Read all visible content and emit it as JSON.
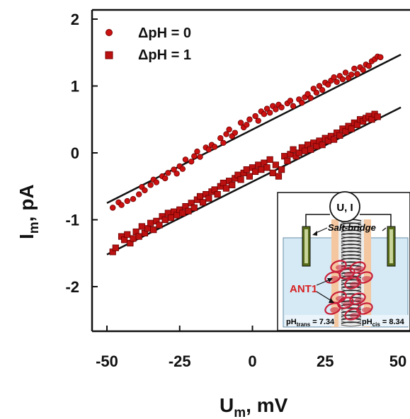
{
  "chart_data": {
    "type": "scatter",
    "xlabel_main": "U",
    "xlabel_sub": "m",
    "xlabel_unit": ", mV",
    "ylabel_main": "I",
    "ylabel_sub": "m",
    "ylabel_unit": ", pA",
    "xlim": [
      -55,
      51
    ],
    "ylim": [
      -2.75,
      2.1
    ],
    "x_ticks": [
      -50,
      -25,
      0,
      25,
      50
    ],
    "y_ticks": [
      2,
      1,
      0,
      -1,
      -2
    ],
    "x_tick_labels": [
      "-50",
      "-25",
      "0",
      "25",
      "50"
    ],
    "y_tick_labels": [
      "2",
      "1",
      "0",
      "-1",
      "-2"
    ],
    "legend_position": "top-left",
    "series": [
      {
        "name": "ΔpH = 0",
        "marker": "circle",
        "color": "#cc1111",
        "fit_line": {
          "x": [
            -50,
            51
          ],
          "y": [
            -0.75,
            1.47
          ]
        },
        "points": [
          [
            -48,
            -0.82
          ],
          [
            -46,
            -0.74
          ],
          [
            -45,
            -0.78
          ],
          [
            -43,
            -0.72
          ],
          [
            -41,
            -0.69
          ],
          [
            -39,
            -0.62
          ],
          [
            -38,
            -0.51
          ],
          [
            -37,
            -0.56
          ],
          [
            -35,
            -0.48
          ],
          [
            -34,
            -0.4
          ],
          [
            -33,
            -0.44
          ],
          [
            -31,
            -0.35
          ],
          [
            -30,
            -0.38
          ],
          [
            -29,
            -0.3
          ],
          [
            -27,
            -0.25
          ],
          [
            -26,
            -0.31
          ],
          [
            -25,
            -0.2
          ],
          [
            -24,
            -0.24
          ],
          [
            -23,
            -0.1
          ],
          [
            -21,
            -0.13
          ],
          [
            -20,
            -0.05
          ],
          [
            -19,
            0.02
          ],
          [
            -18,
            -0.06
          ],
          [
            -16,
            0.08
          ],
          [
            -15,
            0.05
          ],
          [
            -14,
            0.12
          ],
          [
            -13,
            0.09
          ],
          [
            -11,
            0.22
          ],
          [
            -10,
            0.15
          ],
          [
            -9,
            0.28
          ],
          [
            -8,
            0.35
          ],
          [
            -7,
            0.25
          ],
          [
            -6,
            0.3
          ],
          [
            -4,
            0.45
          ],
          [
            -3,
            0.38
          ],
          [
            -2,
            0.42
          ],
          [
            -1,
            0.5
          ],
          [
            1,
            0.55
          ],
          [
            2,
            0.48
          ],
          [
            3,
            0.62
          ],
          [
            4,
            0.58
          ],
          [
            5,
            0.66
          ],
          [
            6,
            0.6
          ],
          [
            7,
            0.7
          ],
          [
            8,
            0.65
          ],
          [
            9,
            0.72
          ],
          [
            10,
            0.68
          ],
          [
            12,
            0.74
          ],
          [
            13,
            0.78
          ],
          [
            14,
            0.7
          ],
          [
            16,
            0.8
          ],
          [
            17,
            0.75
          ],
          [
            18,
            0.83
          ],
          [
            19,
            0.88
          ],
          [
            20,
            0.82
          ],
          [
            21,
            0.96
          ],
          [
            22,
            0.9
          ],
          [
            23,
            1.0
          ],
          [
            24,
            0.94
          ],
          [
            25,
            1.05
          ],
          [
            26,
            1.02
          ],
          [
            27,
            1.08
          ],
          [
            28,
            1.13
          ],
          [
            29,
            1.06
          ],
          [
            30,
            1.15
          ],
          [
            31,
            1.1
          ],
          [
            32,
            1.2
          ],
          [
            33,
            1.12
          ],
          [
            34,
            1.17
          ],
          [
            35,
            1.26
          ],
          [
            36,
            1.18
          ],
          [
            37,
            1.28
          ],
          [
            38,
            1.24
          ],
          [
            39,
            1.32
          ],
          [
            40,
            1.3
          ],
          [
            41,
            1.37
          ],
          [
            42,
            1.4
          ],
          [
            43,
            1.44
          ],
          [
            44,
            1.43
          ]
        ]
      },
      {
        "name": "ΔpH = 1",
        "marker": "square",
        "color": "#bb1111",
        "fit_line": {
          "x": [
            -50,
            51
          ],
          "y": [
            -1.52,
            0.68
          ]
        },
        "points": [
          [
            -48,
            -1.48
          ],
          [
            -47,
            -1.42
          ],
          [
            -45,
            -1.25
          ],
          [
            -44,
            -1.3
          ],
          [
            -43,
            -1.22
          ],
          [
            -42,
            -1.35
          ],
          [
            -41,
            -1.28
          ],
          [
            -40,
            -1.18
          ],
          [
            -39,
            -1.25
          ],
          [
            -38,
            -1.1
          ],
          [
            -37,
            -1.2
          ],
          [
            -36,
            -1.13
          ],
          [
            -35,
            -1.05
          ],
          [
            -34,
            -1.15
          ],
          [
            -33,
            -1.02
          ],
          [
            -32,
            -1.08
          ],
          [
            -31,
            -0.95
          ],
          [
            -30,
            -1.0
          ],
          [
            -29,
            -0.9
          ],
          [
            -28,
            -0.97
          ],
          [
            -27,
            -0.88
          ],
          [
            -26,
            -0.93
          ],
          [
            -25,
            -0.85
          ],
          [
            -24,
            -0.9
          ],
          [
            -23,
            -0.8
          ],
          [
            -22,
            -0.87
          ],
          [
            -21,
            -0.75
          ],
          [
            -20,
            -0.82
          ],
          [
            -19,
            -0.7
          ],
          [
            -18,
            -0.65
          ],
          [
            -17,
            -0.74
          ],
          [
            -16,
            -0.62
          ],
          [
            -15,
            -0.68
          ],
          [
            -14,
            -0.58
          ],
          [
            -13,
            -0.55
          ],
          [
            -12,
            -0.62
          ],
          [
            -11,
            -0.5
          ],
          [
            -10,
            -0.45
          ],
          [
            -9,
            -0.53
          ],
          [
            -8,
            -0.42
          ],
          [
            -7,
            -0.48
          ],
          [
            -6,
            -0.38
          ],
          [
            -5,
            -0.33
          ],
          [
            -4,
            -0.4
          ],
          [
            -3,
            -0.3
          ],
          [
            -2,
            -0.25
          ],
          [
            -1,
            -0.35
          ],
          [
            0,
            -0.22
          ],
          [
            1,
            -0.28
          ],
          [
            2,
            -0.18
          ],
          [
            3,
            -0.25
          ],
          [
            4,
            -0.15
          ],
          [
            5,
            -0.22
          ],
          [
            6,
            -0.1
          ],
          [
            7,
            -0.3
          ],
          [
            8,
            -0.18
          ],
          [
            9,
            -0.35
          ],
          [
            10,
            -0.25
          ],
          [
            11,
            -0.05
          ],
          [
            12,
            -0.12
          ],
          [
            13,
            -0.02
          ],
          [
            14,
            0.05
          ],
          [
            15,
            -0.05
          ],
          [
            16,
            0.0
          ],
          [
            17,
            0.08
          ],
          [
            18,
            0.03
          ],
          [
            19,
            0.12
          ],
          [
            20,
            0.05
          ],
          [
            21,
            0.15
          ],
          [
            22,
            0.1
          ],
          [
            23,
            0.18
          ],
          [
            24,
            0.12
          ],
          [
            25,
            0.22
          ],
          [
            26,
            0.18
          ],
          [
            27,
            0.25
          ],
          [
            28,
            0.2
          ],
          [
            29,
            0.3
          ],
          [
            30,
            0.26
          ],
          [
            31,
            0.36
          ],
          [
            32,
            0.32
          ],
          [
            33,
            0.4
          ],
          [
            34,
            0.36
          ],
          [
            35,
            0.45
          ],
          [
            36,
            0.42
          ],
          [
            37,
            0.5
          ],
          [
            38,
            0.47
          ],
          [
            39,
            0.52
          ],
          [
            40,
            0.55
          ],
          [
            41,
            0.5
          ],
          [
            42,
            0.58
          ],
          [
            43,
            0.54
          ]
        ]
      }
    ]
  },
  "inset": {
    "circle_label": "U, I",
    "salt_bridge_label": "Salt-bridge",
    "protein_label": "ANT1",
    "ph_trans_prefix": "pH",
    "ph_trans_sub": "trans",
    "ph_trans_value": " = 7.34",
    "ph_cis_prefix": "pH",
    "ph_cis_sub": "cis",
    "ph_cis_value": " = 8.34",
    "colors": {
      "bath": "#d6eaf5",
      "protein": "#c8203a",
      "helix": "#222222"
    }
  }
}
